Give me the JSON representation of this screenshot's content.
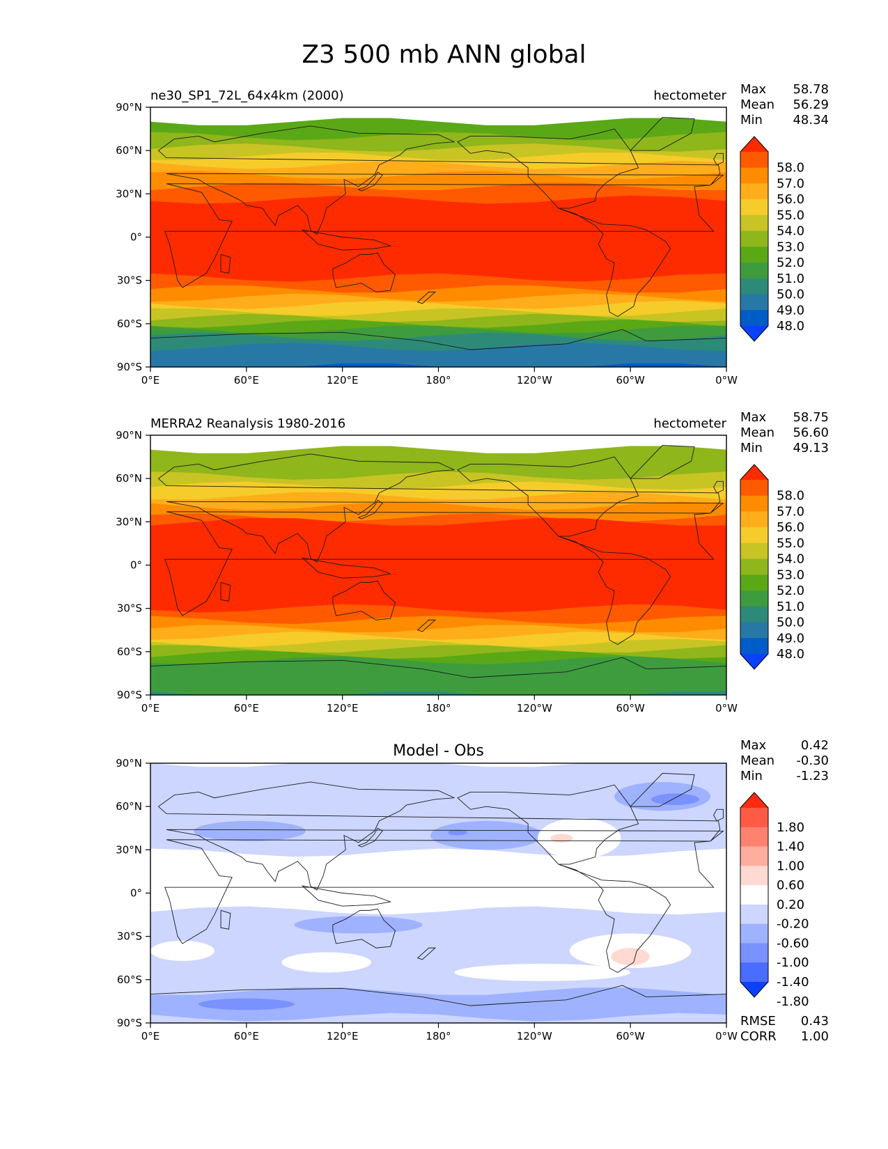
{
  "figure": {
    "title": "Z3 500 mb ANN global"
  },
  "chart_data": [
    {
      "type": "heatmap",
      "map": "contour-fill",
      "title_left": "ne30_SP1_72L_64x4km (2000)",
      "title_right": "hectometer",
      "title_center": "",
      "stats": [
        {
          "label": "Max",
          "value": "58.78"
        },
        {
          "label": "Mean",
          "value": "56.29"
        },
        {
          "label": "Min",
          "value": "48.34"
        }
      ],
      "bottom_stats": [],
      "x_ticks": [
        "0°E",
        "60°E",
        "120°E",
        "180°",
        "120°W",
        "60°W",
        "0°W"
      ],
      "y_ticks": [
        "90°N",
        "60°N",
        "30°N",
        "0°",
        "30°S",
        "60°S",
        "90°S"
      ],
      "colorbar": {
        "labels": [
          "58.0",
          "57.0",
          "56.0",
          "55.0",
          "54.0",
          "53.0",
          "52.0",
          "51.0",
          "50.0",
          "49.0",
          "48.0"
        ],
        "colors": [
          "#ff2b00",
          "#ff5a00",
          "#ff8c00",
          "#ffad1a",
          "#f5cc2a",
          "#c8c423",
          "#8fb61a",
          "#5aa816",
          "#3e9c3e",
          "#2e8a78",
          "#2878a6",
          "#005cc6",
          "#0c40ff"
        ]
      },
      "bands": [
        {
          "lat": 80,
          "color": "#5aa816"
        },
        {
          "lat": 70,
          "color": "#8fb61a"
        },
        {
          "lat": 62,
          "color": "#c8c423"
        },
        {
          "lat": 56,
          "color": "#f5cc2a"
        },
        {
          "lat": 50,
          "color": "#ffad1a"
        },
        {
          "lat": 43,
          "color": "#ff8c00"
        },
        {
          "lat": 35,
          "color": "#ff5a00"
        },
        {
          "lat": 26,
          "color": "#ff2b00"
        },
        {
          "lat": -28,
          "color": "#ff5a00"
        },
        {
          "lat": -36,
          "color": "#ff8c00"
        },
        {
          "lat": -42,
          "color": "#ffad1a"
        },
        {
          "lat": -47,
          "color": "#f5cc2a"
        },
        {
          "lat": -52,
          "color": "#c8c423"
        },
        {
          "lat": -56,
          "color": "#8fb61a"
        },
        {
          "lat": -60,
          "color": "#5aa816"
        },
        {
          "lat": -64,
          "color": "#3e9c3e"
        },
        {
          "lat": -69,
          "color": "#2e8a78"
        },
        {
          "lat": -76,
          "color": "#2878a6"
        },
        {
          "lat": -90,
          "color": "#005cc6"
        }
      ],
      "blobs": []
    },
    {
      "type": "heatmap",
      "map": "contour-fill",
      "title_left": "MERRA2 Reanalysis 1980-2016",
      "title_right": "hectometer",
      "title_center": "",
      "stats": [
        {
          "label": "Max",
          "value": "58.75"
        },
        {
          "label": "Mean",
          "value": "56.60"
        },
        {
          "label": "Min",
          "value": "49.13"
        }
      ],
      "bottom_stats": [],
      "x_ticks": [
        "0°E",
        "60°E",
        "120°E",
        "180°",
        "120°W",
        "60°W",
        "0°W"
      ],
      "y_ticks": [
        "90°N",
        "60°N",
        "30°N",
        "0°",
        "30°S",
        "60°S",
        "90°S"
      ],
      "colorbar": {
        "labels": [
          "58.0",
          "57.0",
          "56.0",
          "55.0",
          "54.0",
          "53.0",
          "52.0",
          "51.0",
          "50.0",
          "49.0",
          "48.0"
        ],
        "colors": [
          "#ff2b00",
          "#ff5a00",
          "#ff8c00",
          "#ffad1a",
          "#f5cc2a",
          "#c8c423",
          "#8fb61a",
          "#5aa816",
          "#3e9c3e",
          "#2e8a78",
          "#2878a6",
          "#005cc6",
          "#0c40ff"
        ]
      },
      "bands": [
        {
          "lat": 80,
          "color": "#8fb61a"
        },
        {
          "lat": 62,
          "color": "#c8c423"
        },
        {
          "lat": 55,
          "color": "#f5cc2a"
        },
        {
          "lat": 48,
          "color": "#ffad1a"
        },
        {
          "lat": 41,
          "color": "#ff8c00"
        },
        {
          "lat": 33,
          "color": "#ff5a00"
        },
        {
          "lat": 30,
          "color": "#ff2b00"
        },
        {
          "lat": -30,
          "color": "#ff5a00"
        },
        {
          "lat": -38,
          "color": "#ff8c00"
        },
        {
          "lat": -44,
          "color": "#ffad1a"
        },
        {
          "lat": -49,
          "color": "#f5cc2a"
        },
        {
          "lat": -54,
          "color": "#c8c423"
        },
        {
          "lat": -58,
          "color": "#8fb61a"
        },
        {
          "lat": -62,
          "color": "#5aa816"
        },
        {
          "lat": -66,
          "color": "#3e9c3e"
        },
        {
          "lat": -90,
          "color": "#2e8a78"
        }
      ],
      "blobs": []
    },
    {
      "type": "heatmap",
      "map": "contour-fill",
      "title_left": "",
      "title_right": "",
      "title_center": "Model - Obs",
      "stats": [
        {
          "label": "Max",
          "value": "0.42"
        },
        {
          "label": "Mean",
          "value": "-0.30"
        },
        {
          "label": "Min",
          "value": "-1.23"
        }
      ],
      "bottom_stats": [
        {
          "label": "RMSE",
          "value": "0.43"
        },
        {
          "label": "CORR",
          "value": "1.00"
        }
      ],
      "x_ticks": [
        "0°E",
        "60°E",
        "120°E",
        "180°",
        "120°W",
        "60°W",
        "0°W"
      ],
      "y_ticks": [
        "90°N",
        "60°N",
        "30°N",
        "0°",
        "30°S",
        "60°S",
        "90°S"
      ],
      "colorbar": {
        "labels": [
          "1.80",
          "1.40",
          "1.00",
          "0.60",
          "0.20",
          "-0.20",
          "-0.60",
          "-1.00",
          "-1.40",
          "-1.80"
        ],
        "colors": [
          "#ff2a12",
          "#ff5a45",
          "#ff8270",
          "#ffad9f",
          "#ffd9d2",
          "#ffffff",
          "#ccd6ff",
          "#9fb2ff",
          "#7a92ff",
          "#4a6cff",
          "#0c40ff"
        ]
      },
      "bands": [
        {
          "lat": 90,
          "color": "#ccd6ff"
        },
        {
          "lat": 28,
          "color": "#ffffff"
        },
        {
          "lat": -12,
          "color": "#ccd6ff"
        },
        {
          "lat": -68,
          "color": "#9fb2ff"
        },
        {
          "lat": -86,
          "color": "#ccd6ff"
        }
      ],
      "blobs": [
        {
          "lon": 130,
          "lat": -22,
          "rlon": 40,
          "rlat": 6,
          "color": "#9fb2ff"
        },
        {
          "lon": 62,
          "lat": 43,
          "rlon": 35,
          "rlat": 7,
          "color": "#9fb2ff"
        },
        {
          "lon": 210,
          "lat": 40,
          "rlon": 35,
          "rlat": 10,
          "color": "#9fb2ff"
        },
        {
          "lon": 320,
          "lat": 67,
          "rlon": 30,
          "rlat": 10,
          "color": "#9fb2ff"
        },
        {
          "lon": 110,
          "lat": -48,
          "rlon": 28,
          "rlat": 7,
          "color": "#ffffff"
        },
        {
          "lon": 245,
          "lat": -55,
          "rlon": 55,
          "rlat": 6,
          "color": "#ffffff"
        },
        {
          "lon": 20,
          "lat": -40,
          "rlon": 20,
          "rlat": 7,
          "color": "#ffffff"
        },
        {
          "lon": 300,
          "lat": -40,
          "rlon": 38,
          "rlat": 12,
          "color": "#ffffff"
        },
        {
          "lon": 268,
          "lat": 38,
          "rlon": 26,
          "rlat": 14,
          "color": "#ffffff"
        },
        {
          "lon": 300,
          "lat": -44,
          "rlon": 12,
          "rlat": 6,
          "color": "#ffd9d2"
        },
        {
          "lon": 328,
          "lat": 65,
          "rlon": 15,
          "rlat": 4,
          "color": "#7a92ff"
        },
        {
          "lon": 60,
          "lat": -77,
          "rlon": 30,
          "rlat": 4,
          "color": "#7a92ff"
        },
        {
          "lon": 192,
          "lat": 42,
          "rlon": 6,
          "rlat": 2,
          "color": "#7a92ff"
        },
        {
          "lon": 257,
          "lat": 38,
          "rlon": 7,
          "rlat": 3,
          "color": "#ffd9d2"
        }
      ]
    }
  ]
}
